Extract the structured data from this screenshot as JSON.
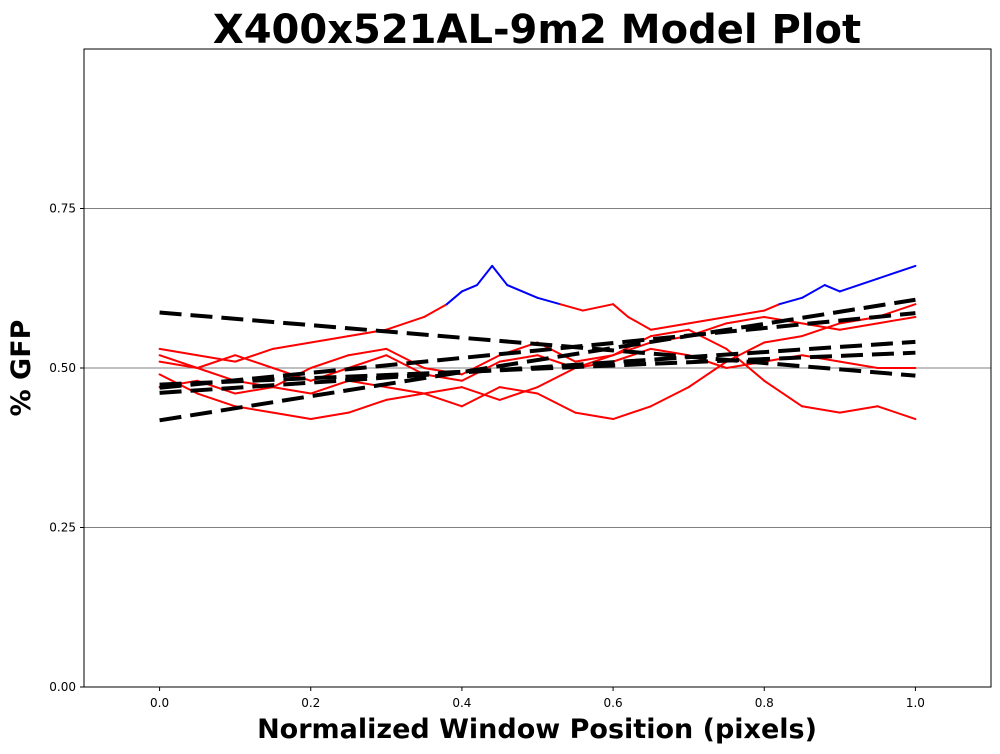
{
  "chart_data": {
    "type": "line",
    "title": "X400x521AL-9m2 Model Plot",
    "xlabel": "Normalized Window Position (pixels)",
    "ylabel": "% GFP",
    "xlim": [
      -0.1,
      1.1
    ],
    "ylim": [
      0.0,
      1.0
    ],
    "x_ticks": [
      0.0,
      0.2,
      0.4,
      0.6,
      0.8,
      1.0
    ],
    "x_tick_labels": [
      "0.0",
      "0.2",
      "0.4",
      "0.6",
      "0.8",
      "1.0"
    ],
    "y_ticks": [
      0.0,
      0.25,
      0.5,
      0.75
    ],
    "y_tick_labels": [
      "0.00",
      "0.25",
      "0.50",
      "0.75"
    ],
    "grid": "horizontal at y ticks",
    "colors": {
      "trace_default": "#ff0000",
      "trace_highlight": "#0000ff",
      "fit": "#000000",
      "grid": "#808080"
    },
    "traces": [
      {
        "color": "red",
        "highlight_color": "blue",
        "highlight_above": 0.595,
        "x": [
          0.0,
          0.05,
          0.1,
          0.15,
          0.2,
          0.25,
          0.3,
          0.35,
          0.38,
          0.4,
          0.42,
          0.44,
          0.46,
          0.5,
          0.53,
          0.56,
          0.6,
          0.62,
          0.65,
          0.7,
          0.75,
          0.8,
          0.82,
          0.85,
          0.88,
          0.9,
          0.95,
          1.0
        ],
        "values": [
          0.53,
          0.52,
          0.51,
          0.53,
          0.54,
          0.55,
          0.56,
          0.58,
          0.6,
          0.62,
          0.63,
          0.66,
          0.63,
          0.61,
          0.6,
          0.59,
          0.6,
          0.58,
          0.56,
          0.57,
          0.58,
          0.59,
          0.6,
          0.61,
          0.63,
          0.62,
          0.64,
          0.66
        ]
      },
      {
        "color": "red",
        "x": [
          0.0,
          0.05,
          0.1,
          0.15,
          0.2,
          0.25,
          0.3,
          0.35,
          0.4,
          0.45,
          0.5,
          0.55,
          0.6,
          0.65,
          0.7,
          0.75,
          0.8,
          0.85,
          0.9,
          0.95,
          1.0
        ],
        "values": [
          0.52,
          0.5,
          0.48,
          0.47,
          0.46,
          0.48,
          0.47,
          0.46,
          0.47,
          0.45,
          0.47,
          0.5,
          0.52,
          0.55,
          0.56,
          0.53,
          0.48,
          0.44,
          0.43,
          0.44,
          0.42
        ]
      },
      {
        "color": "red",
        "x": [
          0.0,
          0.05,
          0.1,
          0.15,
          0.2,
          0.25,
          0.3,
          0.35,
          0.4,
          0.45,
          0.5,
          0.55,
          0.6,
          0.65,
          0.7,
          0.75,
          0.8,
          0.85,
          0.9,
          0.95,
          1.0
        ],
        "values": [
          0.49,
          0.46,
          0.44,
          0.43,
          0.42,
          0.43,
          0.45,
          0.46,
          0.44,
          0.47,
          0.46,
          0.43,
          0.42,
          0.44,
          0.47,
          0.51,
          0.54,
          0.55,
          0.57,
          0.58,
          0.6
        ]
      },
      {
        "color": "red",
        "x": [
          0.0,
          0.05,
          0.1,
          0.15,
          0.2,
          0.25,
          0.3,
          0.35,
          0.4,
          0.45,
          0.5,
          0.55,
          0.6,
          0.65,
          0.7,
          0.75,
          0.8,
          0.85,
          0.9,
          0.95,
          1.0
        ],
        "values": [
          0.51,
          0.5,
          0.52,
          0.5,
          0.48,
          0.5,
          0.52,
          0.49,
          0.48,
          0.51,
          0.52,
          0.5,
          0.51,
          0.53,
          0.52,
          0.5,
          0.51,
          0.52,
          0.51,
          0.5,
          0.5
        ]
      },
      {
        "color": "red",
        "x": [
          0.0,
          0.05,
          0.1,
          0.15,
          0.2,
          0.25,
          0.3,
          0.35,
          0.4,
          0.45,
          0.5,
          0.55,
          0.6,
          0.65,
          0.7,
          0.75,
          0.8,
          0.85,
          0.9,
          0.95,
          1.0
        ],
        "values": [
          0.47,
          0.48,
          0.46,
          0.47,
          0.5,
          0.52,
          0.53,
          0.5,
          0.49,
          0.52,
          0.54,
          0.51,
          0.52,
          0.54,
          0.55,
          0.57,
          0.58,
          0.57,
          0.56,
          0.57,
          0.58
        ]
      }
    ],
    "fit_lines": [
      {
        "x": [
          0.0,
          1.0
        ],
        "values": [
          0.587,
          0.488
        ],
        "style": "dashed"
      },
      {
        "x": [
          0.0,
          1.0
        ],
        "values": [
          0.418,
          0.607
        ],
        "style": "dashed"
      },
      {
        "x": [
          0.0,
          1.0
        ],
        "values": [
          0.469,
          0.586
        ],
        "style": "dashed"
      },
      {
        "x": [
          0.0,
          1.0
        ],
        "values": [
          0.461,
          0.541
        ],
        "style": "dashed"
      },
      {
        "x": [
          0.0,
          1.0
        ],
        "values": [
          0.474,
          0.524
        ],
        "style": "dashed"
      }
    ]
  }
}
